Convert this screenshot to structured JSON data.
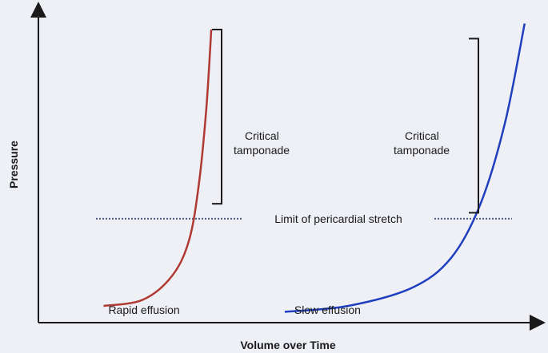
{
  "chart_data": {
    "type": "line",
    "xlabel": "Volume over Time",
    "ylabel": "Pressure",
    "x_ticks": "none",
    "y_ticks": "none",
    "grid": false,
    "xlim": [
      0,
      100
    ],
    "ylim": [
      0,
      100
    ],
    "reference_line": {
      "label": "Limit of pericardial stretch",
      "y": 33,
      "style": "dotted"
    },
    "series": [
      {
        "label": "Rapid effusion",
        "color": "#b03a32",
        "x": [
          12,
          20,
          26,
          29.5,
          31.5,
          33,
          34
        ],
        "y": [
          4,
          6,
          14,
          26,
          45,
          70,
          96
        ]
      },
      {
        "label": "Slow effusion",
        "color": "#1f3fbf",
        "x": [
          49,
          62,
          75,
          83,
          89,
          94,
          98
        ],
        "y": [
          2,
          4,
          10,
          20,
          38,
          65,
          98
        ]
      }
    ],
    "annotations": [
      {
        "text": "Critical tamponade",
        "series": "Rapid effusion",
        "bracket_y": [
          38,
          96
        ]
      },
      {
        "text": "Critical tamponade",
        "series": "Slow effusion",
        "bracket_y": [
          35,
          93
        ]
      }
    ],
    "legend": "none"
  }
}
